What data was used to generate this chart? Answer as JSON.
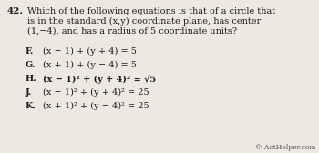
{
  "background_color": "#ede9e2",
  "q_num": "42.",
  "q_line1": "Which of the following equations is that of a circle that",
  "q_line2": "is in the standard (x,y) coordinate plane, has center",
  "q_line3": "(1,−4), and has a radius of 5 coordinate units?",
  "options": [
    {
      "label": "F.",
      "text": "(x − 1) + (y + 4) = 5",
      "bold": false
    },
    {
      "label": "G.",
      "text": "(x + 1) + (y − 4) = 5",
      "bold": false
    },
    {
      "label": "H.",
      "text": "(x − 1)² + (y + 4)² = √5",
      "bold": true
    },
    {
      "label": "J.",
      "text": "(x − 1)² + (y + 4)² = 25",
      "bold": false
    },
    {
      "label": "K.",
      "text": "(x + 1)² + (y − 4)² = 25",
      "bold": false
    }
  ],
  "watermark": "© ActHelper.com",
  "text_color": "#1c1c1c",
  "watermark_color": "#555555",
  "fs_qnum": 7.5,
  "fs_q": 7.0,
  "fs_opt_label": 7.0,
  "fs_opt_text": 7.0,
  "fs_watermark": 5.5
}
